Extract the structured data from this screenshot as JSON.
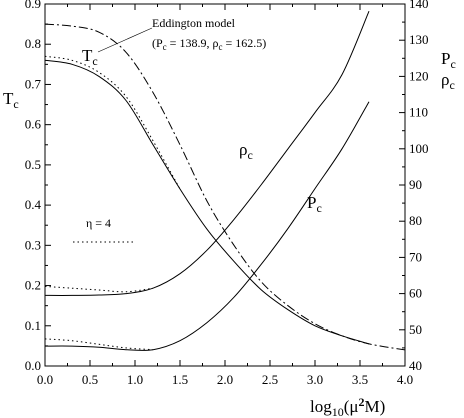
{
  "chart_data": {
    "type": "line",
    "x_axis": {
      "label_main": "log",
      "label_sub": "10",
      "label_rest": "(μ",
      "label_sup": "2",
      "label_end": "M)",
      "range": [
        0.0,
        4.0
      ],
      "ticks": [
        "0.0",
        "0.5",
        "1.0",
        "1.5",
        "2.0",
        "2.5",
        "3.0",
        "3.5",
        "4.0"
      ]
    },
    "y_left": {
      "label_main": "T",
      "label_sub": "c",
      "range": [
        0.0,
        0.9
      ],
      "ticks": [
        "0.0",
        "0.1",
        "0.2",
        "0.3",
        "0.4",
        "0.5",
        "0.6",
        "0.7",
        "0.8",
        "0.9"
      ]
    },
    "y_right": {
      "label1_main": "P",
      "label1_sub": "c",
      "label2_main": "ρ",
      "label2_sub": "c",
      "range": [
        40,
        140
      ],
      "ticks": [
        "40",
        "50",
        "60",
        "70",
        "80",
        "90",
        "100",
        "110",
        "120",
        "130",
        "140"
      ]
    },
    "grid": false,
    "legend": {
      "eta_label": "η = 4"
    },
    "annotations": {
      "eddington_line1": "Eddington model",
      "eddington_line2_a": "(P",
      "eddington_line2_b": "c",
      "eddington_line2_c": " = 138.9,  ρ",
      "eddington_line2_d": "c",
      "eddington_line2_e": " = 162.5)"
    },
    "curve_labels": {
      "tc_main": "T",
      "tc_sub": "c",
      "rho_main": "ρ",
      "rho_sub": "c",
      "pc_main": "P",
      "pc_sub": "c"
    },
    "series": [
      {
        "axis": "left",
        "style": "solid",
        "x": [
          0.0,
          0.3,
          0.6,
          0.9,
          1.2,
          1.5,
          1.8,
          2.1,
          2.4,
          2.7,
          3.0,
          3.3,
          3.6
        ],
        "y": [
          0.76,
          0.75,
          0.72,
          0.66,
          0.55,
          0.44,
          0.34,
          0.26,
          0.19,
          0.14,
          0.1,
          0.075,
          0.055
        ]
      },
      {
        "axis": "left",
        "style": "dotted",
        "x": [
          0.0,
          0.3,
          0.6,
          0.9,
          1.2,
          1.5
        ],
        "y": [
          0.77,
          0.76,
          0.73,
          0.67,
          0.56,
          0.44
        ]
      },
      {
        "axis": "left",
        "style": "dashdot",
        "x": [
          0.0,
          0.3,
          0.6,
          0.9,
          1.2,
          1.5,
          1.8,
          2.1,
          2.4,
          2.7,
          3.0,
          3.3,
          3.6,
          4.0
        ],
        "y": [
          0.85,
          0.845,
          0.83,
          0.78,
          0.68,
          0.55,
          0.41,
          0.3,
          0.21,
          0.15,
          0.105,
          0.075,
          0.055,
          0.04
        ]
      },
      {
        "axis": "right",
        "style": "solid",
        "x": [
          0.0,
          0.3,
          0.6,
          0.9,
          1.2,
          1.5,
          1.8,
          2.1,
          2.4,
          2.7,
          3.0,
          3.3,
          3.6
        ],
        "y": [
          59.5,
          59.5,
          59.6,
          60.0,
          61.5,
          65.5,
          72.0,
          80.5,
          90.0,
          100.0,
          110.0,
          120.5,
          138.0
        ]
      },
      {
        "axis": "right",
        "style": "dotted",
        "x": [
          0.0,
          0.3,
          0.6,
          0.9,
          1.2
        ],
        "y": [
          62.0,
          61.5,
          61.0,
          60.5,
          61.5
        ]
      },
      {
        "axis": "right",
        "style": "solid",
        "x": [
          0.0,
          0.3,
          0.6,
          0.9,
          1.2,
          1.5,
          1.8,
          2.1,
          2.4,
          2.7,
          3.0,
          3.3,
          3.6
        ],
        "y": [
          45.5,
          45.5,
          45.2,
          44.5,
          44.5,
          47.0,
          52.0,
          59.0,
          68.0,
          78.0,
          89.0,
          100.0,
          113.0
        ]
      },
      {
        "axis": "right",
        "style": "dotted",
        "x": [
          0.0,
          0.3,
          0.6,
          0.9,
          1.2
        ],
        "y": [
          47.5,
          47.0,
          46.0,
          45.0,
          44.5
        ]
      }
    ]
  }
}
